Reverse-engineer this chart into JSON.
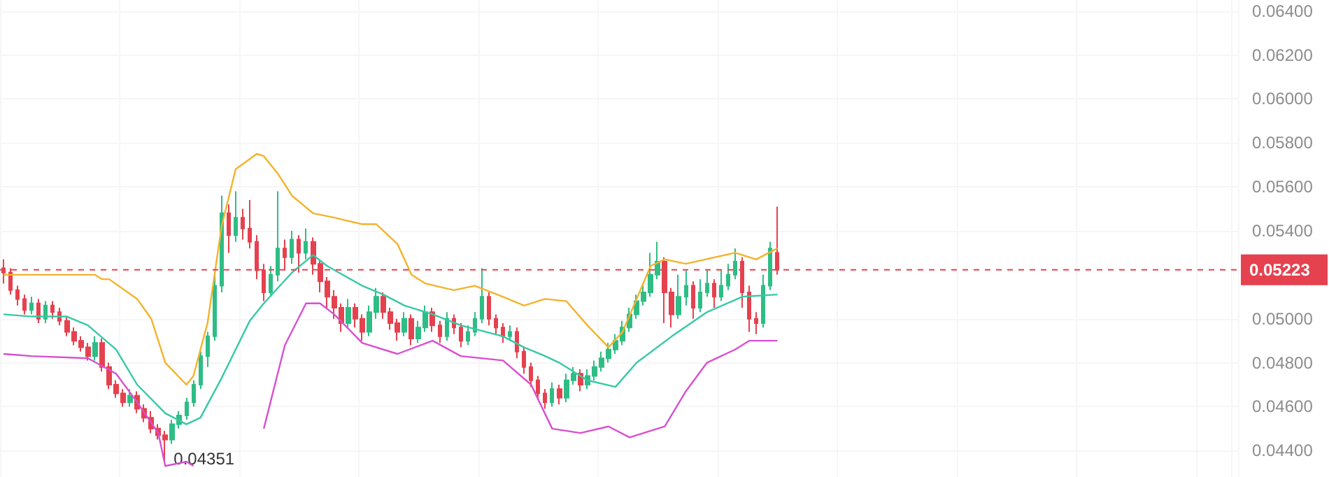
{
  "chart_data": {
    "type": "candlestick",
    "categories": [
      null,
      null,
      null,
      null,
      null,
      null,
      null,
      null,
      null,
      null,
      null,
      null,
      null,
      null,
      null,
      null,
      null,
      null,
      null,
      null,
      null,
      null,
      null,
      null,
      null,
      null,
      null,
      null,
      null,
      null,
      null,
      null,
      null,
      null,
      null,
      null,
      null,
      null,
      null,
      null,
      null,
      null,
      null,
      null,
      null,
      null,
      null,
      null,
      null,
      null,
      null,
      null,
      null,
      null,
      null,
      null,
      null,
      null,
      null,
      null,
      null,
      null,
      null,
      null,
      null,
      null,
      null,
      null,
      null,
      null,
      null,
      null,
      null,
      null,
      null,
      null,
      null,
      null,
      null,
      null,
      null,
      null,
      null,
      null,
      null,
      null,
      null,
      null,
      null,
      null,
      null,
      null,
      null,
      null,
      null,
      null,
      null,
      null,
      null,
      null,
      null,
      null,
      null,
      null,
      null,
      null,
      null,
      null,
      null,
      null,
      null,
      null,
      null,
      null,
      null,
      null,
      null,
      null,
      null,
      null,
      null,
      null,
      null,
      null,
      null,
      null,
      null,
      null,
      null,
      null,
      null,
      null,
      null,
      null,
      null,
      null,
      null,
      null,
      null,
      null,
      null,
      null,
      null,
      null,
      null,
      null,
      null,
      null,
      null,
      null,
      null,
      null,
      null,
      null,
      null,
      null,
      null,
      null,
      null,
      null,
      null,
      null,
      null,
      null,
      null,
      null,
      null,
      null,
      null,
      null,
      null,
      null,
      null,
      null,
      null,
      null
    ],
    "ohlc": [
      [
        0.0523,
        0.0527,
        0.0516,
        0.0521
      ],
      [
        0.0521,
        0.0523,
        0.0511,
        0.0513
      ],
      [
        0.0513,
        0.0515,
        0.0506,
        0.0509
      ],
      [
        0.0509,
        0.0511,
        0.0502,
        0.0504
      ],
      [
        0.0504,
        0.051,
        0.0502,
        0.0507
      ],
      [
        0.0507,
        0.0509,
        0.0498,
        0.05
      ],
      [
        0.05,
        0.0508,
        0.0498,
        0.0506
      ],
      [
        0.0506,
        0.0508,
        0.05,
        0.0503
      ],
      [
        0.0503,
        0.0505,
        0.0497,
        0.0499
      ],
      [
        0.0499,
        0.0501,
        0.0492,
        0.0494
      ],
      [
        0.0494,
        0.0496,
        0.0488,
        0.049
      ],
      [
        0.049,
        0.0492,
        0.0485,
        0.0487
      ],
      [
        0.0487,
        0.0489,
        0.0481,
        0.0483
      ],
      [
        0.0483,
        0.0492,
        0.0481,
        0.0489
      ],
      [
        0.0489,
        0.0491,
        0.0476,
        0.0478
      ],
      [
        0.0478,
        0.048,
        0.0468,
        0.047
      ],
      [
        0.047,
        0.0472,
        0.0464,
        0.0466
      ],
      [
        0.0466,
        0.0468,
        0.046,
        0.0462
      ],
      [
        0.0462,
        0.0468,
        0.046,
        0.0465
      ],
      [
        0.0465,
        0.0467,
        0.0457,
        0.0459
      ],
      [
        0.0459,
        0.0461,
        0.0453,
        0.0455
      ],
      [
        0.0455,
        0.0458,
        0.0448,
        0.045
      ],
      [
        0.045,
        0.0452,
        0.0445,
        0.0447
      ],
      [
        0.0447,
        0.0449,
        0.04351,
        0.0445
      ],
      [
        0.0445,
        0.0454,
        0.0443,
        0.0452
      ],
      [
        0.0452,
        0.0458,
        0.045,
        0.0456
      ],
      [
        0.0456,
        0.0464,
        0.0454,
        0.0462
      ],
      [
        0.0462,
        0.0472,
        0.046,
        0.047
      ],
      [
        0.047,
        0.0485,
        0.0468,
        0.0483
      ],
      [
        0.0483,
        0.0494,
        0.0478,
        0.0492
      ],
      [
        0.0492,
        0.052,
        0.049,
        0.0515
      ],
      [
        0.0515,
        0.0556,
        0.0512,
        0.0548
      ],
      [
        0.0548,
        0.0552,
        0.053,
        0.0538
      ],
      [
        0.0538,
        0.0558,
        0.0535,
        0.0546
      ],
      [
        0.0546,
        0.055,
        0.0536,
        0.0541
      ],
      [
        0.0541,
        0.0554,
        0.0532,
        0.0535
      ],
      [
        0.0535,
        0.0538,
        0.0518,
        0.0522
      ],
      [
        0.0522,
        0.0525,
        0.0508,
        0.0512
      ],
      [
        0.0512,
        0.0524,
        0.051,
        0.052
      ],
      [
        0.052,
        0.0558,
        0.0517,
        0.0532
      ],
      [
        0.0532,
        0.0536,
        0.0522,
        0.0528
      ],
      [
        0.0528,
        0.054,
        0.0525,
        0.0536
      ],
      [
        0.0536,
        0.0538,
        0.0521,
        0.053
      ],
      [
        0.053,
        0.0541,
        0.0527,
        0.0535
      ],
      [
        0.0535,
        0.0537,
        0.052,
        0.0525
      ],
      [
        0.0525,
        0.0527,
        0.0512,
        0.0517
      ],
      [
        0.0517,
        0.0519,
        0.0505,
        0.051
      ],
      [
        0.051,
        0.0513,
        0.05,
        0.0505
      ],
      [
        0.0505,
        0.0507,
        0.0494,
        0.0498
      ],
      [
        0.0498,
        0.0509,
        0.0496,
        0.0505
      ],
      [
        0.0505,
        0.0507,
        0.0496,
        0.05
      ],
      [
        0.05,
        0.0502,
        0.049,
        0.0494
      ],
      [
        0.0494,
        0.0506,
        0.0492,
        0.0503
      ],
      [
        0.0503,
        0.0514,
        0.05,
        0.051
      ],
      [
        0.051,
        0.0512,
        0.05,
        0.0503
      ],
      [
        0.0503,
        0.0505,
        0.0495,
        0.0498
      ],
      [
        0.0498,
        0.05,
        0.049,
        0.0494
      ],
      [
        0.0494,
        0.0503,
        0.0492,
        0.05
      ],
      [
        0.05,
        0.0502,
        0.0488,
        0.0491
      ],
      [
        0.0491,
        0.0499,
        0.0489,
        0.0496
      ],
      [
        0.0496,
        0.0506,
        0.0494,
        0.0503
      ],
      [
        0.0503,
        0.0505,
        0.0494,
        0.0497
      ],
      [
        0.0497,
        0.0499,
        0.0489,
        0.0492
      ],
      [
        0.0492,
        0.0503,
        0.049,
        0.05
      ],
      [
        0.05,
        0.0502,
        0.0493,
        0.0496
      ],
      [
        0.0496,
        0.0498,
        0.0487,
        0.049
      ],
      [
        0.049,
        0.0497,
        0.0488,
        0.0494
      ],
      [
        0.0494,
        0.0503,
        0.0492,
        0.05
      ],
      [
        0.05,
        0.0523,
        0.0498,
        0.051
      ],
      [
        0.051,
        0.0512,
        0.0497,
        0.05
      ],
      [
        0.05,
        0.0502,
        0.0493,
        0.0496
      ],
      [
        0.0496,
        0.0498,
        0.0489,
        0.0492
      ],
      [
        0.0492,
        0.0497,
        0.049,
        0.0494
      ],
      [
        0.0494,
        0.0496,
        0.0482,
        0.0485
      ],
      [
        0.0485,
        0.0487,
        0.0475,
        0.0478
      ],
      [
        0.0478,
        0.048,
        0.0469,
        0.0472
      ],
      [
        0.0472,
        0.0474,
        0.0463,
        0.0466
      ],
      [
        0.0466,
        0.0468,
        0.0459,
        0.0462
      ],
      [
        0.0462,
        0.0471,
        0.046,
        0.0468
      ],
      [
        0.0468,
        0.047,
        0.0461,
        0.0464
      ],
      [
        0.0464,
        0.0475,
        0.0462,
        0.0472
      ],
      [
        0.0472,
        0.0478,
        0.047,
        0.0475
      ],
      [
        0.0475,
        0.0477,
        0.0467,
        0.047
      ],
      [
        0.047,
        0.0477,
        0.0468,
        0.0474
      ],
      [
        0.0474,
        0.0481,
        0.0472,
        0.0478
      ],
      [
        0.0478,
        0.0485,
        0.0476,
        0.0482
      ],
      [
        0.0482,
        0.0489,
        0.048,
        0.0486
      ],
      [
        0.0486,
        0.0493,
        0.0484,
        0.049
      ],
      [
        0.049,
        0.0499,
        0.0488,
        0.0496
      ],
      [
        0.0496,
        0.0505,
        0.0494,
        0.0502
      ],
      [
        0.0502,
        0.0511,
        0.05,
        0.0508
      ],
      [
        0.0508,
        0.0516,
        0.0506,
        0.0512
      ],
      [
        0.0512,
        0.053,
        0.051,
        0.052
      ],
      [
        0.052,
        0.0535,
        0.0518,
        0.0526
      ],
      [
        0.0526,
        0.0528,
        0.0498,
        0.0512
      ],
      [
        0.0512,
        0.0514,
        0.0496,
        0.0502
      ],
      [
        0.0502,
        0.052,
        0.05,
        0.051
      ],
      [
        0.051,
        0.0522,
        0.0506,
        0.0515
      ],
      [
        0.0515,
        0.0517,
        0.05,
        0.0505
      ],
      [
        0.0505,
        0.0518,
        0.0503,
        0.0512
      ],
      [
        0.0512,
        0.0522,
        0.051,
        0.0516
      ],
      [
        0.0516,
        0.0518,
        0.0505,
        0.051
      ],
      [
        0.051,
        0.0522,
        0.0508,
        0.0515
      ],
      [
        0.0515,
        0.0525,
        0.0513,
        0.052
      ],
      [
        0.052,
        0.0532,
        0.0518,
        0.0526
      ],
      [
        0.0526,
        0.0528,
        0.0505,
        0.0512
      ],
      [
        0.0512,
        0.0515,
        0.0494,
        0.05
      ],
      [
        0.05,
        0.0503,
        0.0493,
        0.0498
      ],
      [
        0.0498,
        0.052,
        0.0496,
        0.0515
      ],
      [
        0.0515,
        0.0535,
        0.0513,
        0.0532
      ],
      [
        0.053,
        0.0551,
        0.052,
        0.05223
      ],
      null,
      null,
      null,
      null,
      null,
      null,
      null,
      null,
      null,
      null,
      null,
      null,
      null,
      null,
      null,
      null,
      null,
      null,
      null,
      null,
      null,
      null,
      null,
      null,
      null,
      null,
      null,
      null,
      null,
      null,
      null,
      null,
      null,
      null,
      null,
      null,
      null,
      null,
      null,
      null,
      null,
      null,
      null,
      null,
      null,
      null,
      null,
      null,
      null,
      null,
      null,
      null,
      null,
      null,
      null,
      null,
      null,
      null,
      null,
      null,
      null,
      null,
      null,
      null,
      null
    ],
    "colors": [
      "#e5414f",
      "#e5414f",
      "#e5414f",
      "#e5414f",
      "#2ebd85",
      "#e5414f",
      "#2ebd85",
      "#e5414f",
      "#e5414f",
      "#e5414f",
      "#e5414f",
      "#e5414f",
      "#e5414f",
      "#2ebd85",
      "#e5414f",
      "#e5414f",
      "#e5414f",
      "#e5414f",
      "#2ebd85",
      "#e5414f",
      "#e5414f",
      "#e5414f",
      "#e5414f",
      "#e5414f",
      "#2ebd85",
      "#2ebd85",
      "#2ebd85",
      "#2ebd85",
      "#2ebd85",
      "#2ebd85",
      "#2ebd85",
      "#2ebd85",
      "#e5414f",
      "#2ebd85",
      "#e5414f",
      "#e5414f",
      "#e5414f",
      "#e5414f",
      "#2ebd85",
      "#2ebd85",
      "#e5414f",
      "#2ebd85",
      "#e5414f",
      "#2ebd85",
      "#e5414f",
      "#e5414f",
      "#e5414f",
      "#e5414f",
      "#e5414f",
      "#2ebd85",
      "#e5414f",
      "#e5414f",
      "#2ebd85",
      "#2ebd85",
      "#e5414f",
      "#e5414f",
      "#e5414f",
      "#2ebd85",
      "#e5414f",
      "#2ebd85",
      "#2ebd85",
      "#e5414f",
      "#e5414f",
      "#2ebd85",
      "#e5414f",
      "#e5414f",
      "#2ebd85",
      "#2ebd85",
      "#2ebd85",
      "#e5414f",
      "#e5414f",
      "#e5414f",
      "#2ebd85",
      "#e5414f",
      "#e5414f",
      "#e5414f",
      "#e5414f",
      "#e5414f",
      "#2ebd85",
      "#e5414f",
      "#2ebd85",
      "#2ebd85",
      "#e5414f",
      "#2ebd85",
      "#2ebd85",
      "#2ebd85",
      "#2ebd85",
      "#2ebd85",
      "#2ebd85",
      "#2ebd85",
      "#2ebd85",
      "#2ebd85",
      "#2ebd85",
      "#2ebd85",
      "#e5414f",
      "#e5414f",
      "#2ebd85",
      "#2ebd85",
      "#e5414f",
      "#2ebd85",
      "#2ebd85",
      "#e5414f",
      "#2ebd85",
      "#2ebd85",
      "#2ebd85",
      "#e5414f",
      "#e5414f",
      "#e5414f",
      "#2ebd85",
      "#2ebd85",
      "#e5414f",
      null,
      null,
      null,
      null,
      null,
      null,
      null,
      null,
      null,
      null,
      null,
      null,
      null,
      null,
      null,
      null,
      null,
      null,
      null,
      null,
      null,
      null,
      null,
      null,
      null,
      null,
      null,
      null,
      null,
      null,
      null,
      null,
      null,
      null,
      null,
      null,
      null,
      null,
      null,
      null,
      null,
      null,
      null,
      null,
      null,
      null,
      null,
      null,
      null,
      null,
      null,
      null,
      null,
      null,
      null,
      null,
      null,
      null,
      null,
      null,
      null,
      null,
      null,
      null,
      null
    ],
    "series": [
      {
        "type": "line",
        "color": "#f5b22b",
        "values": [
          0.052,
          null,
          null,
          null,
          null,
          null,
          null,
          null,
          null,
          null,
          null,
          null,
          null,
          0.052,
          0.0518,
          0.0518,
          null,
          null,
          null,
          0.0509,
          null,
          0.05,
          null,
          0.048,
          null,
          null,
          0.047,
          0.0474,
          null,
          0.0498,
          null,
          0.0542,
          null,
          0.0568,
          null,
          null,
          0.0575,
          0.0574,
          null,
          0.0566,
          null,
          0.0556,
          null,
          null,
          0.0548,
          null,
          null,
          0.0546,
          null,
          null,
          null,
          0.0543,
          null,
          0.0543,
          null,
          null,
          0.0534,
          null,
          0.052,
          null,
          0.0516,
          null,
          null,
          null,
          0.0513,
          null,
          null,
          0.0515,
          null,
          null,
          null,
          0.051,
          null,
          null,
          0.0506,
          null,
          null,
          0.0509,
          null,
          null,
          0.0508,
          null,
          null,
          0.0497,
          null,
          null,
          0.0487,
          null,
          0.0494,
          null,
          null,
          null,
          0.0524,
          null,
          0.0527,
          null,
          null,
          0.0525,
          null,
          null,
          null,
          null,
          null,
          null,
          0.053,
          null,
          null,
          0.0527,
          null,
          null,
          0.0532,
          null,
          null,
          null,
          null,
          null,
          null,
          null,
          null,
          null,
          null,
          null,
          null,
          null,
          null,
          null,
          null,
          null,
          null,
          null,
          null,
          null,
          null,
          null,
          null,
          null,
          null,
          null,
          null,
          null,
          null,
          null,
          null,
          null,
          null,
          null,
          null,
          null,
          null,
          null,
          null,
          null,
          null,
          null,
          null,
          null,
          null,
          null,
          null,
          null,
          null,
          null,
          null,
          null,
          null,
          null,
          null,
          null,
          null,
          null,
          null,
          null,
          null,
          null,
          null,
          null
        ]
      },
      {
        "type": "line",
        "color": "#36c9a6",
        "values": [
          0.0502,
          null,
          null,
          null,
          0.0501,
          null,
          null,
          null,
          null,
          0.0501,
          null,
          null,
          0.0497,
          null,
          null,
          null,
          0.0486,
          null,
          null,
          0.047,
          null,
          null,
          null,
          0.0457,
          null,
          null,
          0.0452,
          null,
          0.0455,
          null,
          null,
          0.0473,
          null,
          null,
          null,
          0.0499,
          null,
          0.0507,
          null,
          null,
          null,
          0.0521,
          null,
          null,
          0.0529,
          null,
          0.0524,
          null,
          null,
          null,
          null,
          0.0515,
          null,
          null,
          0.0511,
          null,
          null,
          0.0506,
          null,
          null,
          null,
          0.0502,
          null,
          null,
          null,
          0.0497,
          null,
          null,
          null,
          null,
          null,
          0.0492,
          null,
          null,
          0.0487,
          null,
          null,
          0.0483,
          null,
          0.048,
          null,
          null,
          null,
          0.0472,
          null,
          null,
          null,
          0.0469,
          null,
          null,
          0.048,
          null,
          null,
          null,
          null,
          0.0492,
          null,
          null,
          null,
          null,
          0.0503,
          null,
          null,
          null,
          null,
          0.051,
          null,
          null,
          null,
          null,
          0.0511,
          null,
          null,
          null,
          null,
          null,
          null,
          null,
          null,
          null,
          null,
          null,
          null,
          null,
          null,
          null,
          null,
          null,
          null,
          null,
          null,
          null,
          null,
          null,
          null,
          null,
          null,
          null,
          null,
          null,
          null,
          null,
          null,
          null,
          null,
          null,
          null,
          null,
          null,
          null,
          null,
          null,
          null,
          null,
          null,
          null,
          null,
          null,
          null,
          null,
          null,
          null,
          null,
          null,
          null,
          null,
          null,
          null,
          null,
          null,
          null,
          null,
          null,
          null,
          null,
          null
        ]
      },
      {
        "type": "line",
        "color": "#d94fd0",
        "values": [
          0.0484,
          null,
          null,
          null,
          0.0483,
          null,
          null,
          null,
          null,
          null,
          null,
          null,
          0.0482,
          null,
          null,
          null,
          0.0475,
          null,
          null,
          0.0462,
          null,
          null,
          0.0448,
          0.0433,
          null,
          null,
          0.0435,
          0.0433,
          null,
          null,
          null,
          null,
          null,
          null,
          null,
          null,
          null,
          null,
          null,
          null,
          null,
          null,
          null,
          null,
          null,
          null,
          null,
          null,
          null,
          null,
          null,
          null,
          null,
          null,
          null,
          null,
          null,
          null,
          null,
          null,
          null,
          null,
          null,
          null,
          null,
          null,
          null,
          null,
          null,
          null,
          null,
          null,
          null,
          null,
          null,
          null,
          null,
          null,
          null,
          null,
          null,
          null,
          null,
          null,
          null,
          null,
          null,
          null,
          null,
          null,
          null,
          null,
          null,
          null,
          null,
          null,
          null,
          null,
          null,
          null,
          null,
          null,
          null,
          null,
          null,
          null,
          null,
          null,
          null,
          null,
          null,
          null,
          null,
          null,
          null,
          null,
          null,
          null,
          null,
          null,
          null,
          null,
          null,
          null,
          null,
          null,
          null,
          null,
          null,
          null,
          null,
          null,
          null,
          null,
          null,
          null,
          null,
          null,
          null,
          null,
          null,
          null,
          null,
          null,
          null,
          null,
          null,
          null,
          null,
          null,
          null,
          null,
          null,
          null,
          null,
          null,
          null,
          null,
          null,
          null,
          null,
          null,
          null,
          null,
          null,
          null,
          null,
          null,
          null,
          null,
          null,
          null,
          null,
          null,
          null,
          null
        ]
      },
      {
        "type": "line",
        "color": "#d94fd0",
        "values": [
          null,
          null,
          null,
          null,
          null,
          null,
          null,
          null,
          null,
          null,
          null,
          null,
          null,
          null,
          null,
          null,
          null,
          null,
          null,
          null,
          null,
          null,
          null,
          null,
          null,
          null,
          null,
          null,
          null,
          null,
          null,
          null,
          null,
          null,
          null,
          null,
          null,
          0.045,
          null,
          null,
          0.0488,
          null,
          null,
          0.0507,
          null,
          0.0507,
          null,
          0.0502,
          null,
          null,
          null,
          0.0489,
          null,
          null,
          null,
          null,
          0.0484,
          null,
          null,
          null,
          null,
          0.049,
          null,
          null,
          null,
          0.0483,
          null,
          null,
          null,
          null,
          null,
          0.0481,
          null,
          null,
          null,
          0.047,
          null,
          null,
          0.045,
          null,
          null,
          null,
          0.0448,
          null,
          null,
          null,
          0.0451,
          null,
          null,
          0.0446,
          null,
          null,
          null,
          null,
          0.0451,
          null,
          null,
          0.0467,
          null,
          null,
          0.048,
          null,
          null,
          null,
          0.0486,
          null,
          0.049,
          null,
          null,
          null,
          0.049,
          null,
          null,
          null,
          null,
          null,
          null,
          null,
          null,
          null,
          null,
          null,
          null,
          null,
          null,
          null,
          null,
          null,
          null,
          null,
          null,
          null,
          null,
          null,
          null,
          null,
          null,
          null,
          null,
          null,
          null,
          null,
          null,
          null,
          null,
          null,
          null,
          null,
          null,
          null,
          null,
          null,
          null,
          null,
          null,
          null,
          null,
          null,
          null,
          null,
          null,
          null,
          null,
          null,
          null,
          null,
          null,
          null,
          null,
          null,
          null,
          null,
          null,
          null,
          null,
          null
        ]
      }
    ],
    "marker": "none",
    "line_style": "solid",
    "ylim": [
      0.0428,
      0.0645
    ],
    "yticks": [
      {
        "value": 0.044,
        "label": "0.04400"
      },
      {
        "value": 0.046,
        "label": "0.04600"
      },
      {
        "value": 0.048,
        "label": "0.04800"
      },
      {
        "value": 0.05,
        "label": "0.05000"
      },
      {
        "value": 0.054,
        "label": "0.05400"
      },
      {
        "value": 0.056,
        "label": "0.05600"
      },
      {
        "value": 0.058,
        "label": "0.05800"
      },
      {
        "value": 0.06,
        "label": "0.06000"
      },
      {
        "value": 0.062,
        "label": "0.06200"
      },
      {
        "value": 0.064,
        "label": "0.06400"
      }
    ],
    "tick_labels": "y",
    "grid": true,
    "ref_lines": [
      {
        "axis": "y",
        "value": 0.05223,
        "label": "0.05223",
        "color": "#e5414f",
        "line_style": "dashed"
      }
    ],
    "annotations": [
      "0.04351"
    ]
  }
}
